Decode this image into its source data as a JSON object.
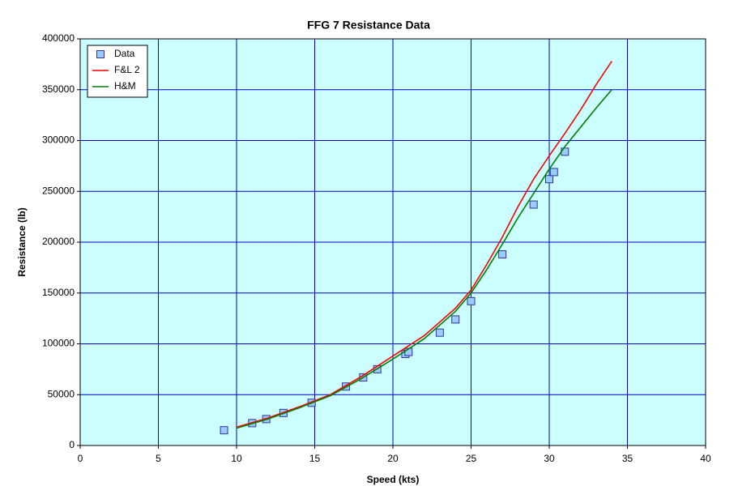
{
  "chart_data": {
    "type": "scatter",
    "title": "FFG 7 Resistance Data",
    "xlabel": "Speed (kts)",
    "ylabel": "Resistance (lb)",
    "xlim": [
      0,
      40
    ],
    "xticks": [
      0,
      5,
      10,
      15,
      20,
      25,
      30,
      35,
      40
    ],
    "ylim": [
      0,
      400000
    ],
    "yticks": [
      0,
      50000,
      100000,
      150000,
      200000,
      250000,
      300000,
      350000,
      400000
    ],
    "grid": true,
    "legend": "upper left",
    "series": [
      {
        "name": "Data",
        "color": "#99ccff",
        "draw": "markers",
        "x": [
          9.2,
          11,
          11.9,
          13,
          14.8,
          17,
          18.1,
          19,
          20.8,
          21,
          23,
          24,
          25,
          27,
          29,
          30,
          30.3,
          31
        ],
        "values": [
          15000,
          22000,
          26000,
          32000,
          42000,
          58000,
          67000,
          75000,
          90000,
          92000,
          111000,
          124000,
          142000,
          188000,
          237000,
          262000,
          269000,
          289000
        ]
      },
      {
        "name": "F&L 2",
        "color": "#ff0000",
        "draw": "line",
        "x": [
          10,
          12,
          14,
          16,
          18,
          20,
          22,
          24,
          25,
          26,
          27,
          28,
          29,
          30,
          31,
          32,
          33,
          34
        ],
        "values": [
          18000,
          27000,
          38000,
          50000,
          68000,
          88000,
          108000,
          135000,
          153000,
          178000,
          205000,
          235000,
          262000,
          285000,
          307000,
          330000,
          355000,
          378000
        ]
      },
      {
        "name": "H&M",
        "color": "#008000",
        "draw": "line",
        "x": [
          10,
          12,
          14,
          16,
          18,
          20,
          22,
          24,
          25,
          26,
          27,
          28,
          29,
          30,
          31,
          32,
          33,
          34
        ],
        "values": [
          17000,
          26000,
          37000,
          49000,
          66000,
          85000,
          105000,
          132000,
          150000,
          173000,
          198000,
          224000,
          248000,
          272000,
          294000,
          313000,
          332000,
          350000
        ]
      }
    ]
  }
}
